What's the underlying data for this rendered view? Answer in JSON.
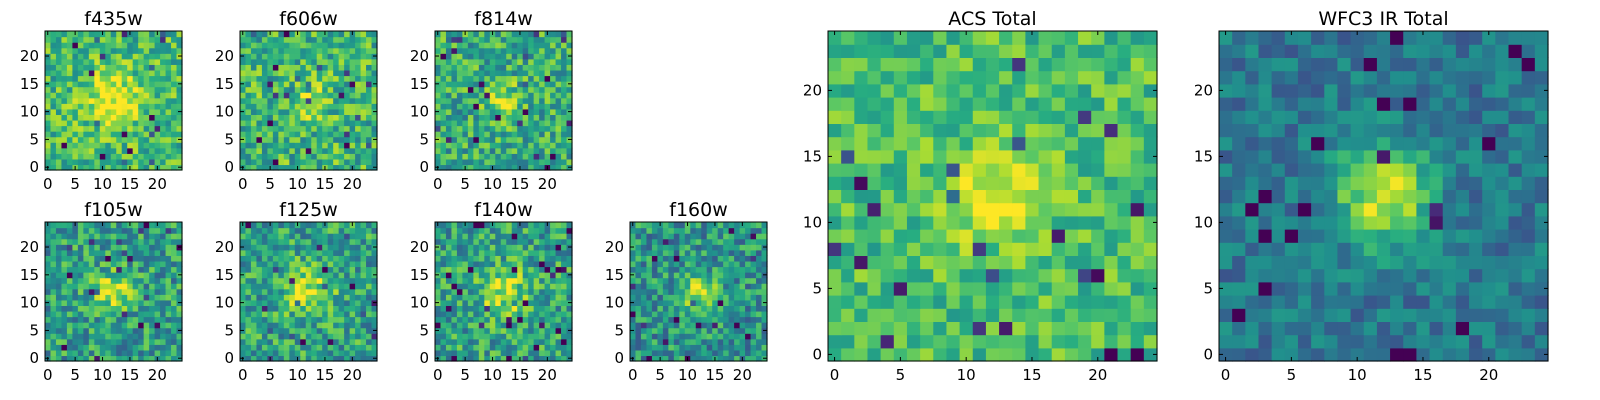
{
  "chart_data": {
    "type": "heatmap",
    "colormap": "viridis",
    "grid_size": 25,
    "x_ticks": [
      0,
      5,
      10,
      15,
      20
    ],
    "y_ticks": [
      0,
      5,
      10,
      15,
      20
    ],
    "panels": [
      {
        "id": "f435w",
        "title": "f435w",
        "peak": 0.35,
        "peak_width": 3.5,
        "baseline": 0.68,
        "noise": 0.22,
        "seed": 11
      },
      {
        "id": "f606w",
        "title": "f606w",
        "peak": 0.15,
        "peak_width": 3.0,
        "baseline": 0.66,
        "noise": 0.24,
        "seed": 23
      },
      {
        "id": "f814w",
        "title": "f814w",
        "peak": 0.3,
        "peak_width": 2.2,
        "baseline": 0.62,
        "noise": 0.24,
        "seed": 37
      },
      {
        "id": "f105w",
        "title": "f105w",
        "peak": 0.38,
        "peak_width": 2.4,
        "baseline": 0.56,
        "noise": 0.24,
        "seed": 41
      },
      {
        "id": "f125w",
        "title": "f125w",
        "peak": 0.35,
        "peak_width": 3.0,
        "baseline": 0.58,
        "noise": 0.24,
        "seed": 53
      },
      {
        "id": "f140w",
        "title": "f140w",
        "peak": 0.35,
        "peak_width": 3.0,
        "baseline": 0.58,
        "noise": 0.24,
        "seed": 67
      },
      {
        "id": "f160w",
        "title": "f160w",
        "peak": 0.4,
        "peak_width": 2.4,
        "baseline": 0.52,
        "noise": 0.24,
        "seed": 79
      },
      {
        "id": "acs-total",
        "title": "ACS Total",
        "peak": 0.3,
        "peak_width": 2.6,
        "baseline": 0.7,
        "noise": 0.17,
        "seed": 83
      },
      {
        "id": "wfc3-ir-total",
        "title": "WFC3 IR Total",
        "peak": 0.55,
        "peak_width": 2.6,
        "baseline": 0.4,
        "noise": 0.14,
        "seed": 97
      }
    ]
  }
}
